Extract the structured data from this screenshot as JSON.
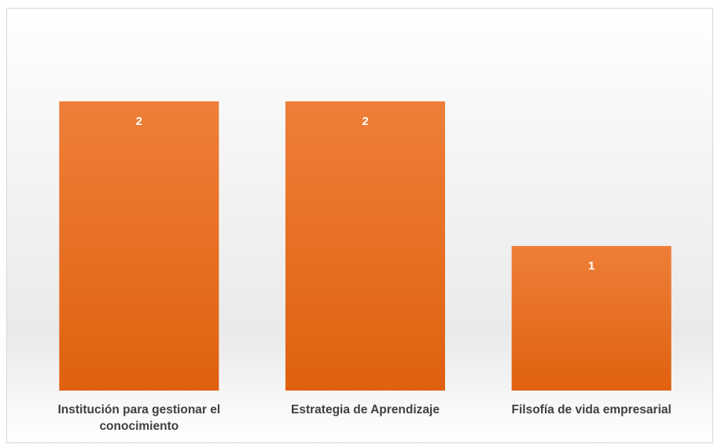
{
  "chart_data": {
    "type": "bar",
    "categories": [
      "Institución para gestionar el conocimiento",
      "Estrategia de Aprendizaje",
      "Filsofía de vida empresarial"
    ],
    "values": [
      2,
      2,
      1
    ],
    "color": "#ec7a30",
    "ylim": [
      0,
      2.5
    ]
  }
}
